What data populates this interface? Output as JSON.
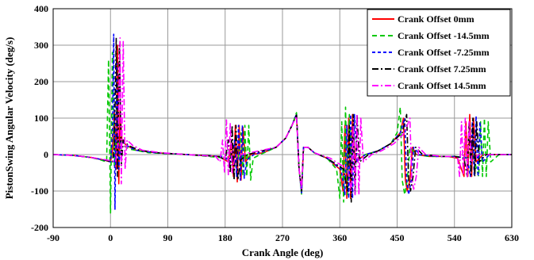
{
  "chart_data": {
    "type": "line",
    "title": "",
    "xlabel": "Crank Angle (deg)",
    "ylabel": "PistonSwing Angular Velocity (deg/s)",
    "xlim": [
      -90,
      630
    ],
    "ylim": [
      -200,
      400
    ],
    "xticks": [
      "-90",
      "0",
      "90",
      "180",
      "270",
      "360",
      "450",
      "540",
      "630"
    ],
    "yticks": [
      "-200",
      "-100",
      "0",
      "100",
      "200",
      "300",
      "400"
    ],
    "grid": true,
    "legend_position": "top-right",
    "series": [
      {
        "name": "Crank Offset 0mm",
        "color": "#ff0000",
        "dash": "solid",
        "points": [
          [
            -90,
            0
          ],
          [
            -60,
            -2
          ],
          [
            -30,
            -8
          ],
          [
            -10,
            -15
          ],
          [
            0,
            -20
          ],
          [
            3,
            10
          ],
          [
            6,
            120
          ],
          [
            9,
            -40
          ],
          [
            11,
            300
          ],
          [
            13,
            -80
          ],
          [
            15,
            120
          ],
          [
            18,
            40
          ],
          [
            25,
            25
          ],
          [
            40,
            12
          ],
          [
            70,
            5
          ],
          [
            120,
            0
          ],
          [
            170,
            -5
          ],
          [
            185,
            -20
          ],
          [
            190,
            40
          ],
          [
            193,
            -60
          ],
          [
            196,
            80
          ],
          [
            199,
            -75
          ],
          [
            202,
            80
          ],
          [
            205,
            -70
          ],
          [
            208,
            75
          ],
          [
            212,
            -20
          ],
          [
            220,
            0
          ],
          [
            240,
            5
          ],
          [
            260,
            20
          ],
          [
            275,
            45
          ],
          [
            285,
            80
          ],
          [
            292,
            110
          ],
          [
            296,
            -40
          ],
          [
            300,
            -100
          ],
          [
            303,
            20
          ],
          [
            310,
            20
          ],
          [
            320,
            5
          ],
          [
            340,
            -10
          ],
          [
            360,
            -40
          ],
          [
            365,
            -100
          ],
          [
            368,
            80
          ],
          [
            371,
            -120
          ],
          [
            374,
            100
          ],
          [
            377,
            -120
          ],
          [
            380,
            110
          ],
          [
            384,
            -20
          ],
          [
            400,
            0
          ],
          [
            420,
            10
          ],
          [
            440,
            30
          ],
          [
            455,
            60
          ],
          [
            460,
            100
          ],
          [
            463,
            -70
          ],
          [
            466,
            -100
          ],
          [
            470,
            -70
          ],
          [
            474,
            20
          ],
          [
            480,
            0
          ],
          [
            500,
            -5
          ],
          [
            530,
            -5
          ],
          [
            545,
            -10
          ],
          [
            555,
            -60
          ],
          [
            558,
            90
          ],
          [
            561,
            -60
          ],
          [
            564,
            110
          ],
          [
            567,
            -60
          ],
          [
            570,
            100
          ],
          [
            574,
            -20
          ],
          [
            585,
            0
          ],
          [
            630,
            0
          ]
        ]
      },
      {
        "name": "Crank Offset -14.5mm",
        "color": "#00c800",
        "dash": "6,4",
        "points": [
          [
            -90,
            0
          ],
          [
            -60,
            -2
          ],
          [
            -30,
            -8
          ],
          [
            -15,
            -15
          ],
          [
            -6,
            -20
          ],
          [
            -3,
            260
          ],
          [
            0,
            -160
          ],
          [
            3,
            280
          ],
          [
            6,
            -30
          ],
          [
            9,
            40
          ],
          [
            15,
            30
          ],
          [
            30,
            15
          ],
          [
            60,
            5
          ],
          [
            120,
            0
          ],
          [
            185,
            -10
          ],
          [
            200,
            -20
          ],
          [
            205,
            60
          ],
          [
            208,
            -60
          ],
          [
            211,
            80
          ],
          [
            214,
            -60
          ],
          [
            217,
            80
          ],
          [
            220,
            -70
          ],
          [
            224,
            -10
          ],
          [
            235,
            0
          ],
          [
            260,
            20
          ],
          [
            275,
            45
          ],
          [
            285,
            80
          ],
          [
            292,
            115
          ],
          [
            296,
            -40
          ],
          [
            300,
            -110
          ],
          [
            303,
            20
          ],
          [
            310,
            20
          ],
          [
            320,
            5
          ],
          [
            340,
            -10
          ],
          [
            355,
            -40
          ],
          [
            360,
            -120
          ],
          [
            363,
            90
          ],
          [
            366,
            -130
          ],
          [
            369,
            130
          ],
          [
            372,
            -110
          ],
          [
            375,
            110
          ],
          [
            379,
            -20
          ],
          [
            400,
            0
          ],
          [
            420,
            10
          ],
          [
            440,
            30
          ],
          [
            450,
            60
          ],
          [
            455,
            130
          ],
          [
            458,
            -70
          ],
          [
            462,
            -110
          ],
          [
            466,
            -70
          ],
          [
            470,
            20
          ],
          [
            480,
            0
          ],
          [
            500,
            -5
          ],
          [
            540,
            -5
          ],
          [
            570,
            -10
          ],
          [
            578,
            -60
          ],
          [
            581,
            90
          ],
          [
            584,
            -60
          ],
          [
            587,
            100
          ],
          [
            590,
            -60
          ],
          [
            593,
            90
          ],
          [
            597,
            -20
          ],
          [
            610,
            0
          ],
          [
            630,
            0
          ]
        ]
      },
      {
        "name": "Crank Offset -7.25mm",
        "color": "#0000ff",
        "dash": "4,3",
        "points": [
          [
            -90,
            0
          ],
          [
            -60,
            -2
          ],
          [
            -30,
            -8
          ],
          [
            -10,
            -15
          ],
          [
            0,
            -20
          ],
          [
            3,
            50
          ],
          [
            5,
            330
          ],
          [
            7,
            -150
          ],
          [
            10,
            250
          ],
          [
            13,
            -40
          ],
          [
            16,
            40
          ],
          [
            25,
            25
          ],
          [
            40,
            12
          ],
          [
            70,
            5
          ],
          [
            120,
            0
          ],
          [
            175,
            -5
          ],
          [
            190,
            -20
          ],
          [
            195,
            40
          ],
          [
            198,
            -60
          ],
          [
            201,
            80
          ],
          [
            204,
            -70
          ],
          [
            207,
            80
          ],
          [
            210,
            -65
          ],
          [
            214,
            -15
          ],
          [
            225,
            0
          ],
          [
            260,
            20
          ],
          [
            275,
            45
          ],
          [
            285,
            80
          ],
          [
            292,
            112
          ],
          [
            296,
            -40
          ],
          [
            300,
            -105
          ],
          [
            303,
            20
          ],
          [
            310,
            20
          ],
          [
            320,
            5
          ],
          [
            340,
            -10
          ],
          [
            362,
            -40
          ],
          [
            368,
            -110
          ],
          [
            371,
            80
          ],
          [
            374,
            -120
          ],
          [
            377,
            110
          ],
          [
            380,
            -120
          ],
          [
            383,
            110
          ],
          [
            387,
            -20
          ],
          [
            400,
            0
          ],
          [
            420,
            10
          ],
          [
            440,
            30
          ],
          [
            455,
            60
          ],
          [
            462,
            100
          ],
          [
            465,
            -70
          ],
          [
            468,
            -110
          ],
          [
            472,
            -70
          ],
          [
            476,
            20
          ],
          [
            485,
            0
          ],
          [
            510,
            -5
          ],
          [
            540,
            -5
          ],
          [
            560,
            -10
          ],
          [
            565,
            -60
          ],
          [
            568,
            90
          ],
          [
            571,
            -55
          ],
          [
            574,
            105
          ],
          [
            577,
            -60
          ],
          [
            580,
            90
          ],
          [
            584,
            -20
          ],
          [
            595,
            0
          ],
          [
            630,
            0
          ]
        ]
      },
      {
        "name": "Crank Offset 7.25mm",
        "color": "#000000",
        "dash": "8,3,2,3",
        "points": [
          [
            -90,
            0
          ],
          [
            -60,
            -2
          ],
          [
            -30,
            -8
          ],
          [
            -10,
            -15
          ],
          [
            3,
            -20
          ],
          [
            6,
            20
          ],
          [
            9,
            320
          ],
          [
            11,
            -60
          ],
          [
            14,
            300
          ],
          [
            17,
            -30
          ],
          [
            20,
            40
          ],
          [
            28,
            25
          ],
          [
            45,
            12
          ],
          [
            75,
            5
          ],
          [
            120,
            0
          ],
          [
            170,
            -5
          ],
          [
            180,
            -15
          ],
          [
            185,
            40
          ],
          [
            188,
            -50
          ],
          [
            191,
            80
          ],
          [
            194,
            -70
          ],
          [
            197,
            80
          ],
          [
            200,
            -70
          ],
          [
            204,
            -15
          ],
          [
            215,
            0
          ],
          [
            260,
            20
          ],
          [
            275,
            45
          ],
          [
            285,
            80
          ],
          [
            292,
            108
          ],
          [
            296,
            -40
          ],
          [
            300,
            -100
          ],
          [
            303,
            20
          ],
          [
            310,
            20
          ],
          [
            320,
            5
          ],
          [
            340,
            -10
          ],
          [
            366,
            -40
          ],
          [
            372,
            -100
          ],
          [
            375,
            80
          ],
          [
            378,
            -130
          ],
          [
            381,
            110
          ],
          [
            384,
            -110
          ],
          [
            387,
            110
          ],
          [
            391,
            -20
          ],
          [
            405,
            0
          ],
          [
            420,
            10
          ],
          [
            440,
            30
          ],
          [
            458,
            60
          ],
          [
            465,
            110
          ],
          [
            468,
            -70
          ],
          [
            471,
            -100
          ],
          [
            475,
            -60
          ],
          [
            479,
            20
          ],
          [
            490,
            0
          ],
          [
            520,
            -5
          ],
          [
            540,
            -5
          ],
          [
            555,
            -10
          ],
          [
            560,
            -60
          ],
          [
            563,
            90
          ],
          [
            566,
            -55
          ],
          [
            569,
            100
          ],
          [
            572,
            -60
          ],
          [
            575,
            90
          ],
          [
            579,
            -20
          ],
          [
            590,
            0
          ],
          [
            630,
            0
          ]
        ]
      },
      {
        "name": "Crank Offset 14.5mm",
        "color": "#ff00ff",
        "dash": "8,3,2,3",
        "points": [
          [
            -90,
            0
          ],
          [
            -60,
            -2
          ],
          [
            -30,
            -8
          ],
          [
            -5,
            -15
          ],
          [
            8,
            -20
          ],
          [
            12,
            30
          ],
          [
            15,
            320
          ],
          [
            17,
            -80
          ],
          [
            20,
            310
          ],
          [
            23,
            -40
          ],
          [
            26,
            40
          ],
          [
            35,
            25
          ],
          [
            50,
            12
          ],
          [
            80,
            5
          ],
          [
            120,
            0
          ],
          [
            165,
            -5
          ],
          [
            172,
            -20
          ],
          [
            176,
            40
          ],
          [
            179,
            -50
          ],
          [
            182,
            95
          ],
          [
            185,
            -55
          ],
          [
            188,
            85
          ],
          [
            191,
            -50
          ],
          [
            195,
            -10
          ],
          [
            205,
            0
          ],
          [
            260,
            20
          ],
          [
            275,
            45
          ],
          [
            285,
            80
          ],
          [
            292,
            105
          ],
          [
            296,
            -40
          ],
          [
            300,
            -95
          ],
          [
            303,
            20
          ],
          [
            310,
            20
          ],
          [
            320,
            5
          ],
          [
            345,
            -10
          ],
          [
            372,
            -40
          ],
          [
            378,
            -100
          ],
          [
            381,
            80
          ],
          [
            384,
            -110
          ],
          [
            387,
            110
          ],
          [
            390,
            -110
          ],
          [
            393,
            100
          ],
          [
            397,
            -20
          ],
          [
            410,
            0
          ],
          [
            425,
            10
          ],
          [
            445,
            30
          ],
          [
            462,
            60
          ],
          [
            470,
            100
          ],
          [
            473,
            -70
          ],
          [
            476,
            -95
          ],
          [
            480,
            -60
          ],
          [
            484,
            20
          ],
          [
            495,
            0
          ],
          [
            520,
            -5
          ],
          [
            535,
            -5
          ],
          [
            545,
            -10
          ],
          [
            548,
            -60
          ],
          [
            551,
            90
          ],
          [
            554,
            -55
          ],
          [
            557,
            100
          ],
          [
            560,
            -60
          ],
          [
            563,
            90
          ],
          [
            567,
            -20
          ],
          [
            578,
            0
          ],
          [
            630,
            0
          ]
        ]
      }
    ]
  }
}
